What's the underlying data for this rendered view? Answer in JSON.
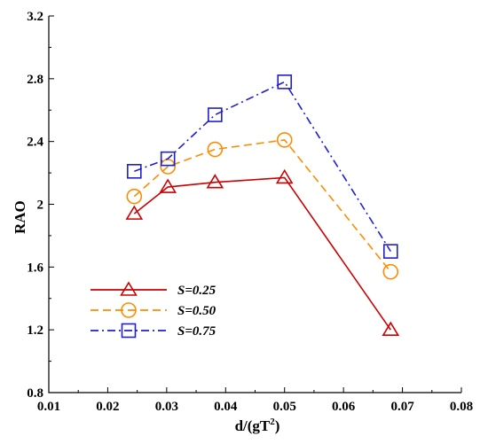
{
  "chart_data": {
    "type": "line",
    "xlabel": "d/(gT²)",
    "ylabel": "RAO",
    "xlim": [
      0.01,
      0.08
    ],
    "ylim": [
      0.8,
      3.2
    ],
    "xticks": [
      "0.01",
      "0.02",
      "0.03",
      "0.04",
      "0.05",
      "0.06",
      "0.07",
      "0.08"
    ],
    "yticks": [
      "0.8",
      "1.2",
      "1.6",
      "2",
      "2.4",
      "2.8",
      "3.2"
    ],
    "x": [
      0.0245,
      0.0302,
      0.0382,
      0.05,
      0.068
    ],
    "grid": false,
    "legend_position": "bottom-left",
    "series": [
      {
        "name": "S=0.25",
        "values": [
          1.94,
          2.11,
          2.14,
          2.17,
          1.2
        ],
        "color": "#cc0000",
        "marker": "triangle",
        "line": "solid"
      },
      {
        "name": "S=0.50",
        "values": [
          2.05,
          2.24,
          2.35,
          2.41,
          1.57
        ],
        "color": "#ff8c00",
        "marker": "circle",
        "line": "dashed"
      },
      {
        "name": "S=0.75",
        "values": [
          2.21,
          2.29,
          2.57,
          2.78,
          1.7
        ],
        "color": "#1f1fcf",
        "marker": "square",
        "line": "dashdot"
      }
    ]
  }
}
